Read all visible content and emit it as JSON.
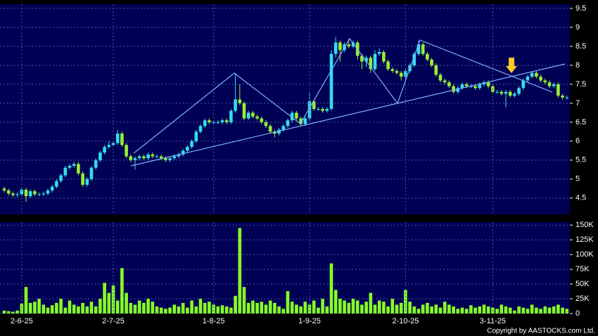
{
  "chart_data": [
    {
      "type": "candlestick",
      "open": [
        4.75,
        4.7,
        4.62,
        4.58,
        4.6,
        4.72,
        4.55,
        4.68,
        4.6,
        4.6,
        4.62,
        4.7,
        4.8,
        4.95,
        5.1,
        5.3,
        5.35,
        5.4,
        5.15,
        4.85,
        5.0,
        5.3,
        5.5,
        5.7,
        5.85,
        5.9,
        5.95,
        6.2,
        5.9,
        5.6,
        5.5,
        5.55,
        5.6,
        5.55,
        5.65,
        5.6,
        5.6,
        5.55,
        5.5,
        5.55,
        5.6,
        5.65,
        5.75,
        5.85,
        6.0,
        6.25,
        6.4,
        6.55,
        6.5,
        6.5,
        6.5,
        6.55,
        6.5,
        6.8,
        7.1,
        7.0,
        6.6,
        6.75,
        6.65,
        6.6,
        6.5,
        6.4,
        6.25,
        6.2,
        6.3,
        6.4,
        6.55,
        6.75,
        6.6,
        6.45,
        6.6,
        7.05,
        6.85,
        6.85,
        6.8,
        6.85,
        8.3,
        8.6,
        8.4,
        8.55,
        8.5,
        8.6,
        8.25,
        8.1,
        8.2,
        7.9,
        8.3,
        8.35,
        8.1,
        7.9,
        7.85,
        7.8,
        7.7,
        7.85,
        8.0,
        8.3,
        8.55,
        8.3,
        8.15,
        8.0,
        7.75,
        7.6,
        7.55,
        7.45,
        7.3,
        7.4,
        7.5,
        7.45,
        7.45,
        7.4,
        7.5,
        7.55,
        7.45,
        7.3,
        7.3,
        7.25,
        7.3,
        7.2,
        7.25,
        7.4,
        7.6,
        7.7,
        7.8,
        7.7,
        7.6,
        7.55,
        7.45,
        7.5,
        7.2,
        7.15
      ],
      "high": [
        4.8,
        4.75,
        4.67,
        4.65,
        4.77,
        4.77,
        4.73,
        4.73,
        4.65,
        4.67,
        4.75,
        4.85,
        5.0,
        5.15,
        5.35,
        5.4,
        5.45,
        5.45,
        5.2,
        5.05,
        5.35,
        5.55,
        5.75,
        5.9,
        6.0,
        6.0,
        6.3,
        6.25,
        5.95,
        5.65,
        5.6,
        5.65,
        5.65,
        5.7,
        5.7,
        5.65,
        5.65,
        5.6,
        5.6,
        5.65,
        5.7,
        5.8,
        5.9,
        6.05,
        6.3,
        6.45,
        6.6,
        6.6,
        6.55,
        6.55,
        6.6,
        6.6,
        6.85,
        7.8,
        7.5,
        7.05,
        6.8,
        6.8,
        6.7,
        6.65,
        6.55,
        6.45,
        6.3,
        6.35,
        6.45,
        6.6,
        6.8,
        6.8,
        6.65,
        6.65,
        7.3,
        7.1,
        6.9,
        6.9,
        6.9,
        8.4,
        8.75,
        8.65,
        8.6,
        8.7,
        8.65,
        8.65,
        8.3,
        8.25,
        8.25,
        8.4,
        8.45,
        8.4,
        8.15,
        7.95,
        7.9,
        7.85,
        7.9,
        8.05,
        8.35,
        8.65,
        8.6,
        8.35,
        8.2,
        8.05,
        7.8,
        7.65,
        7.6,
        7.5,
        7.45,
        7.55,
        7.55,
        7.5,
        7.5,
        7.55,
        7.6,
        7.6,
        7.5,
        7.35,
        7.35,
        7.35,
        7.35,
        7.3,
        7.45,
        7.65,
        7.75,
        7.85,
        7.85,
        7.75,
        7.65,
        7.6,
        7.55,
        7.55,
        7.25,
        7.2
      ],
      "low": [
        4.65,
        4.57,
        4.53,
        4.53,
        4.55,
        4.4,
        4.5,
        4.55,
        4.55,
        4.55,
        4.57,
        4.65,
        4.75,
        4.9,
        5.05,
        5.25,
        5.3,
        5.1,
        4.8,
        4.8,
        4.95,
        5.25,
        5.45,
        5.65,
        5.8,
        5.85,
        5.9,
        5.85,
        5.55,
        5.45,
        5.25,
        5.5,
        5.5,
        5.5,
        5.55,
        5.55,
        5.5,
        5.45,
        5.45,
        5.5,
        5.55,
        5.6,
        5.7,
        5.8,
        5.95,
        6.2,
        6.35,
        6.45,
        6.45,
        6.45,
        6.45,
        6.45,
        6.45,
        6.75,
        6.95,
        6.55,
        6.55,
        6.6,
        6.55,
        6.45,
        6.35,
        6.2,
        6.1,
        6.15,
        6.25,
        6.35,
        6.5,
        6.55,
        6.4,
        6.4,
        6.55,
        6.8,
        6.8,
        6.75,
        6.75,
        6.8,
        8.2,
        8.1,
        8.35,
        8.45,
        8.45,
        8.15,
        7.9,
        7.95,
        7.8,
        7.85,
        8.25,
        8.05,
        7.85,
        7.8,
        7.75,
        7.6,
        7.65,
        7.8,
        7.95,
        8.25,
        8.25,
        8.1,
        7.95,
        7.7,
        7.55,
        7.5,
        7.4,
        7.25,
        7.25,
        7.35,
        7.4,
        7.4,
        7.35,
        7.35,
        7.45,
        7.4,
        7.25,
        7.25,
        7.2,
        6.9,
        7.15,
        7.15,
        7.2,
        7.35,
        7.55,
        7.65,
        7.65,
        7.55,
        7.5,
        7.4,
        7.4,
        7.15,
        7.1,
        7.1
      ],
      "close": [
        4.7,
        4.62,
        4.58,
        4.6,
        4.72,
        4.55,
        4.68,
        4.6,
        4.6,
        4.62,
        4.7,
        4.8,
        4.95,
        5.1,
        5.3,
        5.35,
        5.4,
        5.15,
        4.85,
        5.0,
        5.3,
        5.5,
        5.7,
        5.85,
        5.9,
        5.95,
        6.2,
        5.9,
        5.6,
        5.5,
        5.55,
        5.6,
        5.55,
        5.65,
        5.6,
        5.6,
        5.55,
        5.5,
        5.55,
        5.6,
        5.65,
        5.75,
        5.85,
        6.0,
        6.25,
        6.4,
        6.55,
        6.5,
        6.5,
        6.5,
        6.55,
        6.5,
        6.8,
        7.1,
        7.0,
        6.6,
        6.75,
        6.65,
        6.6,
        6.5,
        6.4,
        6.25,
        6.2,
        6.3,
        6.4,
        6.55,
        6.75,
        6.6,
        6.45,
        6.6,
        7.05,
        6.85,
        6.85,
        6.8,
        6.85,
        8.3,
        8.6,
        8.4,
        8.55,
        8.5,
        8.6,
        8.25,
        8.1,
        8.2,
        7.9,
        8.3,
        8.35,
        8.1,
        7.9,
        7.85,
        7.8,
        7.7,
        7.85,
        8.0,
        8.3,
        8.55,
        8.3,
        8.15,
        8.0,
        7.75,
        7.6,
        7.55,
        7.45,
        7.3,
        7.4,
        7.5,
        7.45,
        7.45,
        7.4,
        7.5,
        7.55,
        7.45,
        7.3,
        7.3,
        7.25,
        7.3,
        7.2,
        7.25,
        7.4,
        7.6,
        7.7,
        7.8,
        7.7,
        7.6,
        7.55,
        7.45,
        7.5,
        7.2,
        7.15,
        7.15
      ],
      "up_color": "#33ddee",
      "down_color": "#99ee33",
      "ylim": [
        4.07,
        9.61
      ],
      "yticks": [
        4.5,
        5,
        5.5,
        6,
        6.5,
        7,
        7.5,
        8,
        8.5,
        9,
        9.5
      ],
      "grid": true
    },
    {
      "type": "bar",
      "categories": [
        null,
        null,
        null,
        null,
        "2-6-25",
        null,
        null,
        null,
        null,
        null,
        null,
        null,
        null,
        null,
        null,
        null,
        null,
        null,
        null,
        null,
        null,
        null,
        null,
        null,
        null,
        "2-7-25",
        null,
        null,
        null,
        null,
        null,
        null,
        null,
        null,
        null,
        null,
        null,
        null,
        null,
        null,
        null,
        null,
        null,
        null,
        null,
        null,
        null,
        null,
        "1-8-25",
        null,
        null,
        null,
        null,
        null,
        null,
        null,
        null,
        null,
        null,
        null,
        null,
        null,
        null,
        null,
        null,
        null,
        null,
        null,
        null,
        null,
        "1-9-25",
        null,
        null,
        null,
        null,
        null,
        null,
        null,
        null,
        null,
        null,
        null,
        null,
        null,
        null,
        null,
        null,
        null,
        null,
        null,
        null,
        null,
        "2-10-25",
        null,
        null,
        null,
        null,
        null,
        null,
        null,
        null,
        null,
        null,
        null,
        null,
        null,
        null,
        null,
        null,
        null,
        null,
        null,
        "3-11-25",
        null,
        null,
        null,
        null,
        null,
        null,
        null,
        null,
        null,
        null,
        null,
        null,
        null,
        null,
        null,
        null,
        null
      ],
      "values": [
        5000,
        4000,
        3000,
        5000,
        17000,
        45000,
        18000,
        20000,
        25000,
        15000,
        10000,
        14000,
        18000,
        25000,
        10000,
        22000,
        15000,
        12000,
        18000,
        12000,
        20000,
        12000,
        25000,
        52000,
        35000,
        48000,
        22000,
        77000,
        35000,
        18000,
        15000,
        22000,
        18000,
        25000,
        20000,
        12000,
        10000,
        8000,
        10000,
        15000,
        12000,
        18000,
        10000,
        22000,
        12000,
        25000,
        18000,
        20000,
        15000,
        12000,
        14000,
        12000,
        10000,
        30000,
        145000,
        45000,
        18000,
        22000,
        18000,
        20000,
        15000,
        22000,
        18000,
        12000,
        8000,
        38000,
        20000,
        15000,
        12000,
        20000,
        15000,
        22000,
        10000,
        25000,
        12000,
        85000,
        40000,
        25000,
        22000,
        18000,
        25000,
        22000,
        15000,
        20000,
        35000,
        15000,
        22000,
        20000,
        12000,
        25000,
        15000,
        18000,
        40000,
        20000,
        12000,
        8000,
        15000,
        18000,
        12000,
        15000,
        10000,
        20000,
        15000,
        12000,
        8000,
        10000,
        8000,
        14000,
        10000,
        12000,
        15000,
        12000,
        10000,
        8000,
        15000,
        12000,
        10000,
        5000,
        12000,
        10000,
        8000,
        15000,
        10000,
        8000,
        12000,
        10000,
        12000,
        15000,
        10000,
        8000
      ],
      "color": "#88ff22",
      "ylim": [
        0,
        155000
      ],
      "yticks": [
        0,
        {
          "value": 25000,
          "label": "25K"
        },
        {
          "value": 50000,
          "label": "50K"
        },
        {
          "value": 75000,
          "label": "75K"
        },
        {
          "value": 100000,
          "label": "100K"
        },
        {
          "value": 125000,
          "label": "125K"
        },
        {
          "value": 150000,
          "label": "150K"
        }
      ],
      "grid": true
    }
  ],
  "footer": "Copyright by AASTOCKS.com Ltd."
}
